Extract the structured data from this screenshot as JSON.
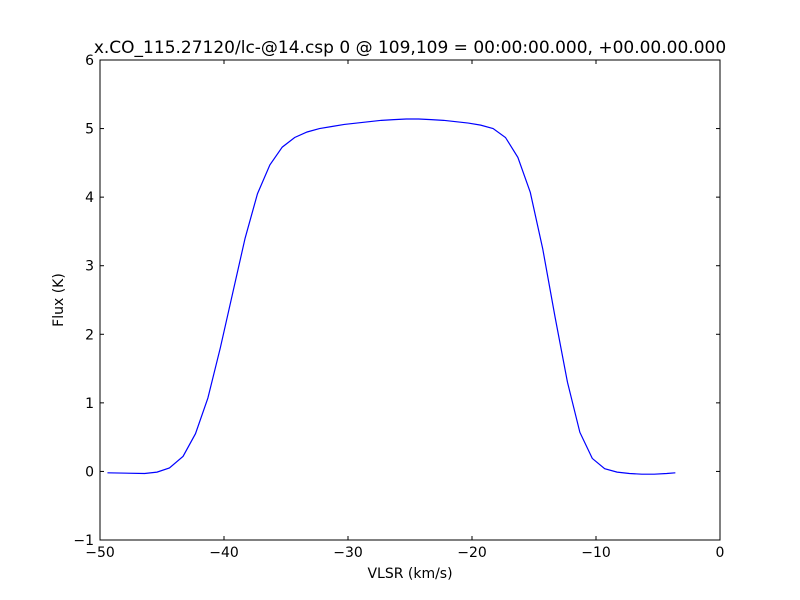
{
  "chart_data": {
    "type": "line",
    "title": "x.CO_115.27120/lc-@14.csp 0 @ 109,109 = 00:00:00.000, +00.00.00.000",
    "x_label": "VLSR (km/s)",
    "y_label": "Flux (K)",
    "xlim": [
      -50,
      0
    ],
    "ylim": [
      -1,
      6
    ],
    "xticks": [
      {
        "value": -50,
        "label": "−50"
      },
      {
        "value": -40,
        "label": "−40"
      },
      {
        "value": -30,
        "label": "−30"
      },
      {
        "value": -20,
        "label": "−20"
      },
      {
        "value": -10,
        "label": "−10"
      },
      0
    ],
    "yticks": [
      {
        "value": -1,
        "label": "−1"
      },
      0,
      1,
      2,
      3,
      4,
      5,
      6
    ],
    "grid": false,
    "series": [
      {
        "color": "#0000ff",
        "x": [
          -49.4,
          -46.4,
          -45.4,
          -44.4,
          -43.3,
          -42.3,
          -41.3,
          -40.3,
          -39.3,
          -38.3,
          -37.3,
          -36.3,
          -35.3,
          -34.3,
          -33.3,
          -32.3,
          -31.3,
          -30.3,
          -29.3,
          -28.3,
          -27.3,
          -26.3,
          -25.3,
          -24.3,
          -23.3,
          -22.3,
          -21.3,
          -20.3,
          -19.3,
          -18.3,
          -17.3,
          -16.3,
          -15.3,
          -14.3,
          -13.3,
          -12.3,
          -11.3,
          -10.3,
          -9.3,
          -8.3,
          -7.3,
          -6.3,
          -5.3,
          -4.3,
          -3.6
        ],
        "values": [
          -0.02,
          -0.03,
          -0.01,
          0.05,
          0.22,
          0.55,
          1.07,
          1.8,
          2.6,
          3.4,
          4.05,
          4.47,
          4.73,
          4.87,
          4.95,
          5.0,
          5.03,
          5.06,
          5.08,
          5.1,
          5.12,
          5.13,
          5.14,
          5.14,
          5.13,
          5.12,
          5.1,
          5.08,
          5.05,
          5.0,
          4.87,
          4.58,
          4.07,
          3.25,
          2.25,
          1.3,
          0.57,
          0.19,
          0.04,
          -0.01,
          -0.03,
          -0.04,
          -0.04,
          -0.03,
          -0.02
        ]
      }
    ]
  }
}
